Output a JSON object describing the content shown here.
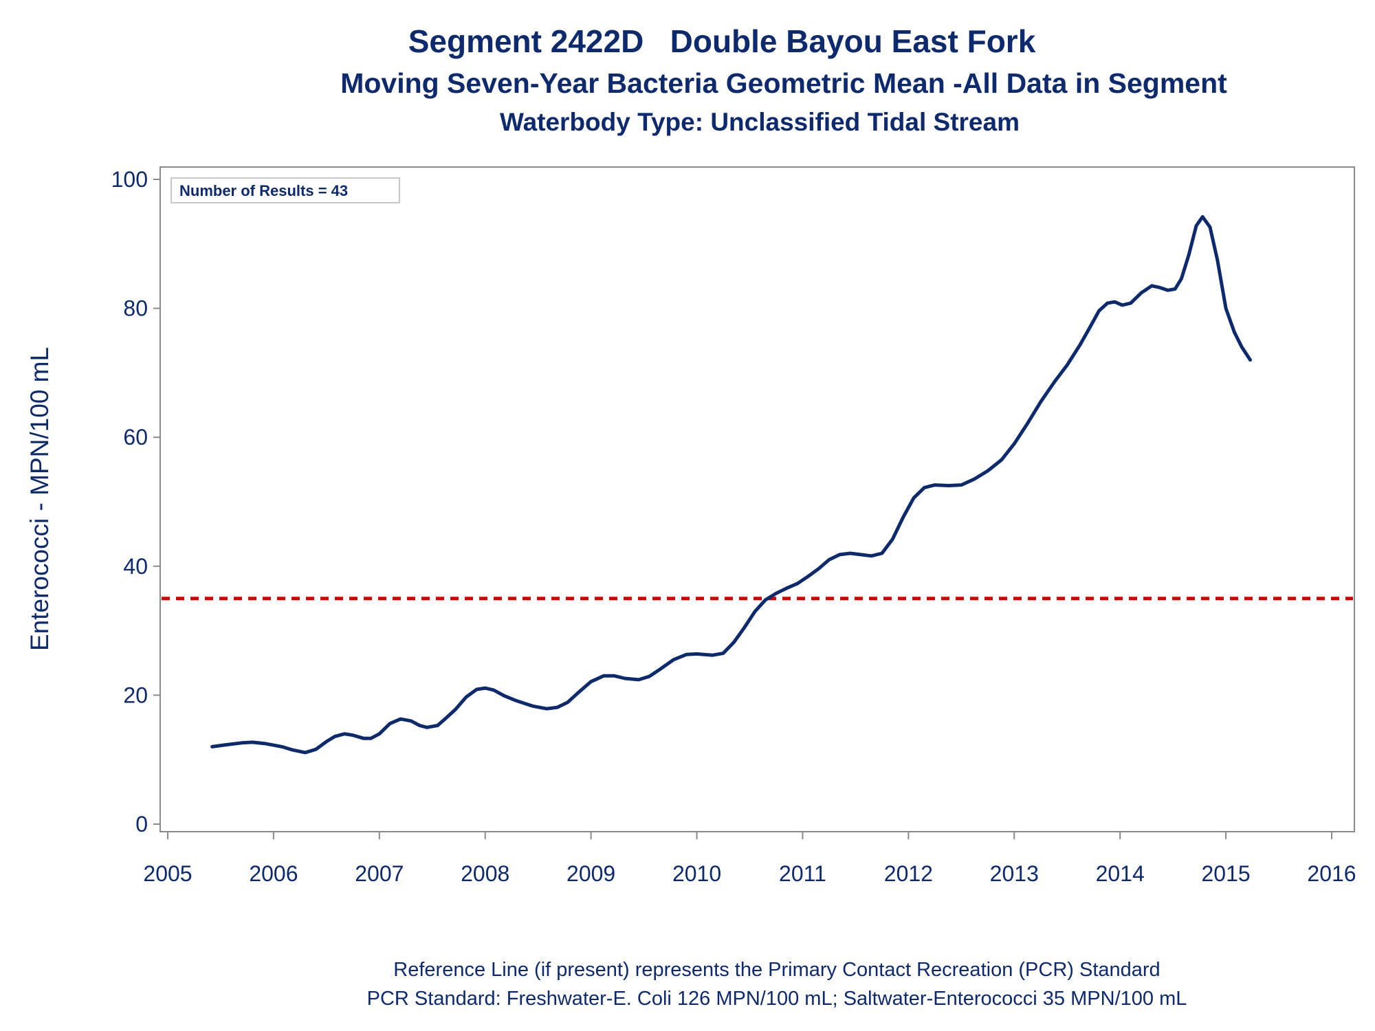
{
  "title": "Segment 2422D   Double Bayou East Fork",
  "subtitle": "Moving Seven-Year Bacteria Geometric Mean -All Data in Segment",
  "subtitle2": "Waterbody Type: Unclassified Tidal Stream",
  "results_box": "Number of Results = 43",
  "footnote1": "Reference Line (if present) represents the Primary Contact Recreation (PCR) Standard",
  "footnote2": "PCR Standard: Freshwater-E. Coli 126 MPN/100 mL; Saltwater-Enterococci 35 MPN/100 mL",
  "colors": {
    "series": "#0d2a6e",
    "reference": "#d40000",
    "axis": "#8a8a8a",
    "text": "#0d2a6e"
  },
  "chart_data": {
    "type": "line",
    "title": "Segment 2422D   Double Bayou East Fork",
    "ylabel": "Enterococci - MPN/100 mL",
    "xlabel": "",
    "xlim": [
      2005,
      2016
    ],
    "ylim": [
      0,
      100
    ],
    "x_ticks": [
      "2005",
      "2006",
      "2007",
      "2008",
      "2009",
      "2010",
      "2011",
      "2012",
      "2013",
      "2014",
      "2015",
      "2016"
    ],
    "y_ticks": [
      "0",
      "20",
      "40",
      "60",
      "80",
      "100"
    ],
    "grid": false,
    "reference_line": {
      "y": 35,
      "style": "dashed"
    },
    "series": [
      {
        "x": [
          2005.42,
          2005.55,
          2005.7,
          2005.8,
          2005.92,
          2006.08,
          2006.18,
          2006.3,
          2006.4,
          2006.5,
          2006.58,
          2006.67,
          2006.75,
          2006.85,
          2006.92,
          2007.0,
          2007.1,
          2007.2,
          2007.3,
          2007.38,
          2007.45,
          2007.55,
          2007.62,
          2007.72,
          2007.82,
          2007.92,
          2008.0,
          2008.08,
          2008.18,
          2008.3,
          2008.45,
          2008.58,
          2008.68,
          2008.78,
          2008.88,
          2009.0,
          2009.12,
          2009.22,
          2009.32,
          2009.45,
          2009.55,
          2009.65,
          2009.78,
          2009.9,
          2010.0,
          2010.15,
          2010.25,
          2010.35,
          2010.45,
          2010.55,
          2010.65,
          2010.75,
          2010.85,
          2010.95,
          2011.05,
          2011.15,
          2011.25,
          2011.35,
          2011.45,
          2011.55,
          2011.65,
          2011.75,
          2011.85,
          2011.95,
          2012.05,
          2012.15,
          2012.25,
          2012.38,
          2012.5,
          2012.62,
          2012.75,
          2012.88,
          2013.0,
          2013.12,
          2013.25,
          2013.38,
          2013.5,
          2013.62,
          2013.72,
          2013.8,
          2013.88,
          2013.95,
          2014.02,
          2014.1,
          2014.2,
          2014.3,
          2014.38,
          2014.45,
          2014.52,
          2014.58,
          2014.65,
          2014.72,
          2014.78,
          2014.85,
          2014.92,
          2015.0,
          2015.08,
          2015.15,
          2015.23
        ],
        "values": [
          12.0,
          12.3,
          12.6,
          12.7,
          12.5,
          12.0,
          11.5,
          11.1,
          11.6,
          12.8,
          13.6,
          14.0,
          13.8,
          13.3,
          13.3,
          14.0,
          15.6,
          16.3,
          16.0,
          15.3,
          15.0,
          15.3,
          16.3,
          17.8,
          19.7,
          20.9,
          21.1,
          20.8,
          19.9,
          19.1,
          18.3,
          17.9,
          18.1,
          18.9,
          20.4,
          22.1,
          23.0,
          23.0,
          22.6,
          22.4,
          22.9,
          24.0,
          25.5,
          26.3,
          26.4,
          26.2,
          26.5,
          28.2,
          30.5,
          33.0,
          34.8,
          35.8,
          36.6,
          37.3,
          38.4,
          39.6,
          41.0,
          41.8,
          42.0,
          41.8,
          41.6,
          42.0,
          44.2,
          47.6,
          50.6,
          52.2,
          52.6,
          52.5,
          52.6,
          53.5,
          54.8,
          56.5,
          59.0,
          62.0,
          65.5,
          68.6,
          71.2,
          74.3,
          77.2,
          79.6,
          80.8,
          81.0,
          80.5,
          80.8,
          82.4,
          83.5,
          83.2,
          82.8,
          83.0,
          84.6,
          88.3,
          92.8,
          94.2,
          92.6,
          87.5,
          80.0,
          76.3,
          74.0,
          72.0
        ]
      }
    ]
  }
}
